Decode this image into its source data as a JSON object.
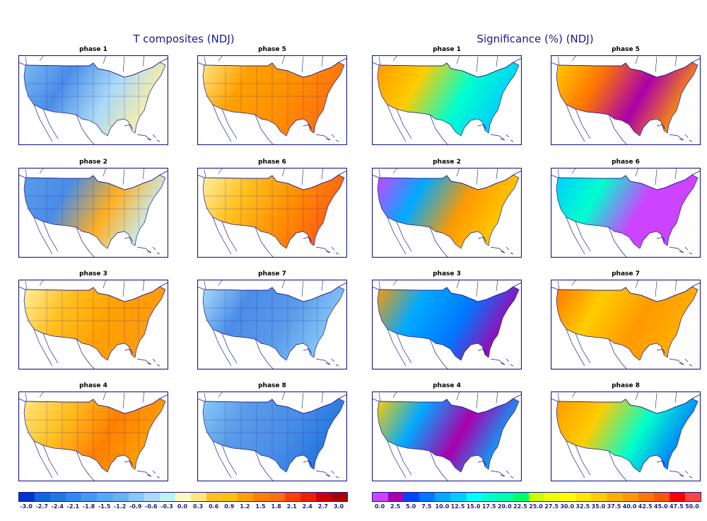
{
  "titles": {
    "left": "T composites (NDJ)",
    "right": "Significance (%) (NDJ)"
  },
  "panels": [
    {
      "group": "t",
      "label": "phase 1",
      "colors": [
        "#7ab8f4",
        "#4a8de8",
        "#aadaf8",
        "#fff0a0"
      ]
    },
    {
      "group": "t",
      "label": "phase 5",
      "colors": [
        "#ffe680",
        "#ffa000",
        "#ff9000",
        "#ff7010"
      ]
    },
    {
      "group": "sig",
      "label": "phase 1",
      "colors": [
        "#ff9900",
        "#ffcc00",
        "#00ffcc",
        "#00ccff"
      ]
    },
    {
      "group": "sig",
      "label": "phase 5",
      "colors": [
        "#ffcc00",
        "#ff7700",
        "#aa00aa",
        "#ff9900"
      ]
    },
    {
      "group": "t",
      "label": "phase 2",
      "colors": [
        "#5a9ae8",
        "#4a8de8",
        "#ffb020",
        "#c2f0fa"
      ]
    },
    {
      "group": "t",
      "label": "phase 6",
      "colors": [
        "#fff0a0",
        "#ffc020",
        "#ff9000",
        "#ff6010"
      ]
    },
    {
      "group": "sig",
      "label": "phase 2",
      "colors": [
        "#cc44ff",
        "#00aaff",
        "#ff9900",
        "#ffcc00"
      ]
    },
    {
      "group": "sig",
      "label": "phase 6",
      "colors": [
        "#00ccff",
        "#00ffcc",
        "#cc44ff",
        "#cc44ff"
      ]
    },
    {
      "group": "t",
      "label": "phase 3",
      "colors": [
        "#fff0a0",
        "#ffc020",
        "#ffa000",
        "#ff9a10"
      ]
    },
    {
      "group": "t",
      "label": "phase 7",
      "colors": [
        "#aadaf8",
        "#4a8de8",
        "#5a9ae8",
        "#88c8f8"
      ]
    },
    {
      "group": "sig",
      "label": "phase 3",
      "colors": [
        "#ff9900",
        "#00aaff",
        "#0077ff",
        "#aa00aa"
      ]
    },
    {
      "group": "sig",
      "label": "phase 7",
      "colors": [
        "#ff7700",
        "#ffcc00",
        "#ff9900",
        "#ffb000"
      ]
    },
    {
      "group": "t",
      "label": "phase 4",
      "colors": [
        "#ffe680",
        "#ffc020",
        "#ff8000",
        "#ffa000"
      ]
    },
    {
      "group": "t",
      "label": "phase 8",
      "colors": [
        "#88c8f8",
        "#5a9ae8",
        "#4a8de8",
        "#2277dd"
      ]
    },
    {
      "group": "sig",
      "label": "phase 4",
      "colors": [
        "#ffcc00",
        "#00aaff",
        "#aa00aa",
        "#00aaff"
      ]
    },
    {
      "group": "sig",
      "label": "phase 8",
      "colors": [
        "#ff9900",
        "#ffcc00",
        "#00ffcc",
        "#0077ff"
      ]
    }
  ],
  "colorbars": {
    "t": {
      "labels": [
        "-3.0",
        "-2.7",
        "-2.4",
        "-2.1",
        "-1.8",
        "-1.5",
        "-1.2",
        "-0.9",
        "-0.6",
        "-0.3",
        "0.0",
        "0.3",
        "0.6",
        "0.9",
        "1.2",
        "1.5",
        "1.8",
        "2.1",
        "2.4",
        "2.7",
        "3.0"
      ],
      "colors": [
        "#0033cc",
        "#1166dd",
        "#2277dd",
        "#3388ee",
        "#4499ee",
        "#55aaf0",
        "#66b3f3",
        "#88c8f8",
        "#aadaf8",
        "#c2f0fa",
        "#fff8c0",
        "#ffe680",
        "#ffc020",
        "#ffc010",
        "#ffa000",
        "#ff8000",
        "#ff7010",
        "#ff4000",
        "#ee2000",
        "#cc0000",
        "#aa0000"
      ]
    },
    "sig": {
      "labels": [
        "0.0",
        "2.5",
        "5.0",
        "7.5",
        "10.0",
        "12.5",
        "15.0",
        "17.5",
        "20.0",
        "22.5",
        "25.0",
        "27.5",
        "30.0",
        "32.5",
        "35.0",
        "37.5",
        "40.0",
        "42.5",
        "45.0",
        "47.5",
        "50.0"
      ],
      "colors": [
        "#cc44ff",
        "#aa00aa",
        "#0044ff",
        "#0077ff",
        "#00aaff",
        "#00ccff",
        "#00ffff",
        "#00ffcc",
        "#00ffaa",
        "#00ff66",
        "#ccff00",
        "#eeff00",
        "#ffff00",
        "#ffe600",
        "#ffcc00",
        "#ffb000",
        "#ff9900",
        "#ff7700",
        "#ff5500",
        "#ff0000",
        "#ff4444"
      ]
    }
  }
}
